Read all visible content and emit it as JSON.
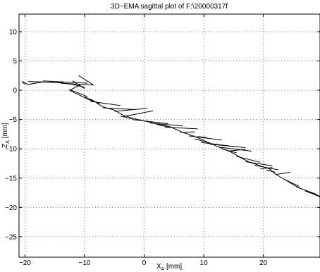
{
  "chart_data": {
    "type": "line",
    "title": "3D−EMA sagittal plot of F:\\20000317f",
    "xlabel": {
      "main": "X",
      "sub": "A",
      "unit": " [mm]"
    },
    "ylabel": {
      "main": "Z",
      "sub": "A",
      "unit": " [mm]"
    },
    "xlim": [
      -21,
      29.5
    ],
    "ylim": [
      -28.5,
      13
    ],
    "xticks": [
      -20,
      -10,
      0,
      10,
      20
    ],
    "xtick_labels": [
      "−20",
      "−10",
      "0",
      "10",
      "20"
    ],
    "yticks": [
      -25,
      -20,
      -15,
      -10,
      -5,
      0,
      5,
      10
    ],
    "ytick_labels": [
      "−25",
      "−20",
      "−15",
      "−10",
      "−5",
      "0",
      "5",
      "10"
    ],
    "grid": true,
    "grid_style": "dotted",
    "line_color": "#000000",
    "series": [
      {
        "x": [
          -20.5,
          -19.5,
          -17,
          -14.5,
          -12,
          -10,
          -11,
          -12.5,
          -10.5,
          -8.5,
          -9,
          -7,
          -5,
          -3.5,
          -1.5,
          2,
          4.5,
          6.5,
          8.5,
          10.5,
          12.5,
          14.5,
          16,
          17.5,
          19.5,
          21,
          22,
          23.5,
          25.5,
          27.5,
          29.5
        ],
        "y": [
          1.5,
          1.0,
          1.4,
          1.3,
          1.0,
          0.5,
          0.8,
          0.0,
          -1.0,
          -2.0,
          -1.5,
          -2.8,
          -3.4,
          -4.3,
          -4.9,
          -5.7,
          -6.3,
          -7.2,
          -7.9,
          -8.8,
          -9.7,
          -10.5,
          -11.4,
          -12.2,
          -12.9,
          -13.4,
          -14.3,
          -15.2,
          -16.4,
          -17.3,
          -18.2
        ]
      }
    ],
    "arrows": [
      {
        "x": [
          -19.5,
          -13.5
        ],
        "y": [
          1.5,
          1.3
        ]
      },
      {
        "x": [
          -17,
          -9.5
        ],
        "y": [
          1.6,
          1.2
        ]
      },
      {
        "x": [
          -14,
          -8.5
        ],
        "y": [
          1.2,
          0.9
        ]
      },
      {
        "x": [
          -12,
          -10
        ],
        "y": [
          1.6,
          0.3
        ]
      },
      {
        "x": [
          -11,
          -8.5
        ],
        "y": [
          2.5,
          0.9
        ]
      },
      {
        "x": [
          -12.5,
          -9.5
        ],
        "y": [
          0.1,
          -1.1
        ]
      },
      {
        "x": [
          -10,
          -7.5
        ],
        "y": [
          -1.1,
          -2.3
        ]
      },
      {
        "x": [
          -9,
          -4
        ],
        "y": [
          -1.9,
          -2.6
        ]
      },
      {
        "x": [
          -7,
          -1.5
        ],
        "y": [
          -3.0,
          -3.3
        ]
      },
      {
        "x": [
          -5,
          0.5
        ],
        "y": [
          -3.6,
          -3.1
        ]
      },
      {
        "x": [
          -3.5,
          1.5
        ],
        "y": [
          -4.5,
          -3.5
        ]
      },
      {
        "x": [
          -2,
          4
        ],
        "y": [
          -5.0,
          -5.7
        ]
      },
      {
        "x": [
          1,
          6.5
        ],
        "y": [
          -5.6,
          -6.1
        ]
      },
      {
        "x": [
          3.5,
          9
        ],
        "y": [
          -6.3,
          -6.6
        ]
      },
      {
        "x": [
          6,
          8.5
        ],
        "y": [
          -7.2,
          -7.1
        ]
      },
      {
        "x": [
          7.5,
          13
        ],
        "y": [
          -7.8,
          -8.5
        ]
      },
      {
        "x": [
          8.5,
          11
        ],
        "y": [
          -8.3,
          -9.0
        ]
      },
      {
        "x": [
          9.5,
          15
        ],
        "y": [
          -8.9,
          -9.6
        ]
      },
      {
        "x": [
          11,
          17
        ],
        "y": [
          -9.2,
          -9.8
        ]
      },
      {
        "x": [
          12.5,
          18
        ],
        "y": [
          -9.7,
          -10.4
        ]
      },
      {
        "x": [
          14,
          17
        ],
        "y": [
          -10.4,
          -10.1
        ]
      },
      {
        "x": [
          15.5,
          19.5
        ],
        "y": [
          -11.3,
          -12.3
        ]
      },
      {
        "x": [
          17,
          21.5
        ],
        "y": [
          -12.2,
          -12.9
        ]
      },
      {
        "x": [
          18.5,
          22.5
        ],
        "y": [
          -12.8,
          -13.6
        ]
      },
      {
        "x": [
          19.5,
          21.5
        ],
        "y": [
          -13.4,
          -13.2
        ]
      },
      {
        "x": [
          20.5,
          22
        ],
        "y": [
          -13.6,
          -14.0
        ]
      },
      {
        "x": [
          22,
          24.5
        ],
        "y": [
          -14.4,
          -14.0
        ]
      },
      {
        "x": [
          23.5,
          26
        ],
        "y": [
          -15.2,
          -16.4
        ]
      },
      {
        "x": [
          25.5,
          29
        ],
        "y": [
          -16.5,
          -17.8
        ]
      },
      {
        "x": [
          -20.5,
          -20
        ],
        "y": [
          1.5,
          1.0
        ]
      },
      {
        "x": [
          2,
          4.5
        ],
        "y": [
          -5.8,
          -6.4
        ]
      },
      {
        "x": [
          13,
          15.5
        ],
        "y": [
          -10.0,
          -10.7
        ]
      },
      {
        "x": [
          -4,
          -2
        ],
        "y": [
          -4.4,
          -4.9
        ]
      },
      {
        "x": [
          9,
          10.5
        ],
        "y": [
          -7.9,
          -8.1
        ]
      },
      {
        "x": [
          27,
          29.5
        ],
        "y": [
          -17.2,
          -18.1
        ]
      }
    ]
  }
}
